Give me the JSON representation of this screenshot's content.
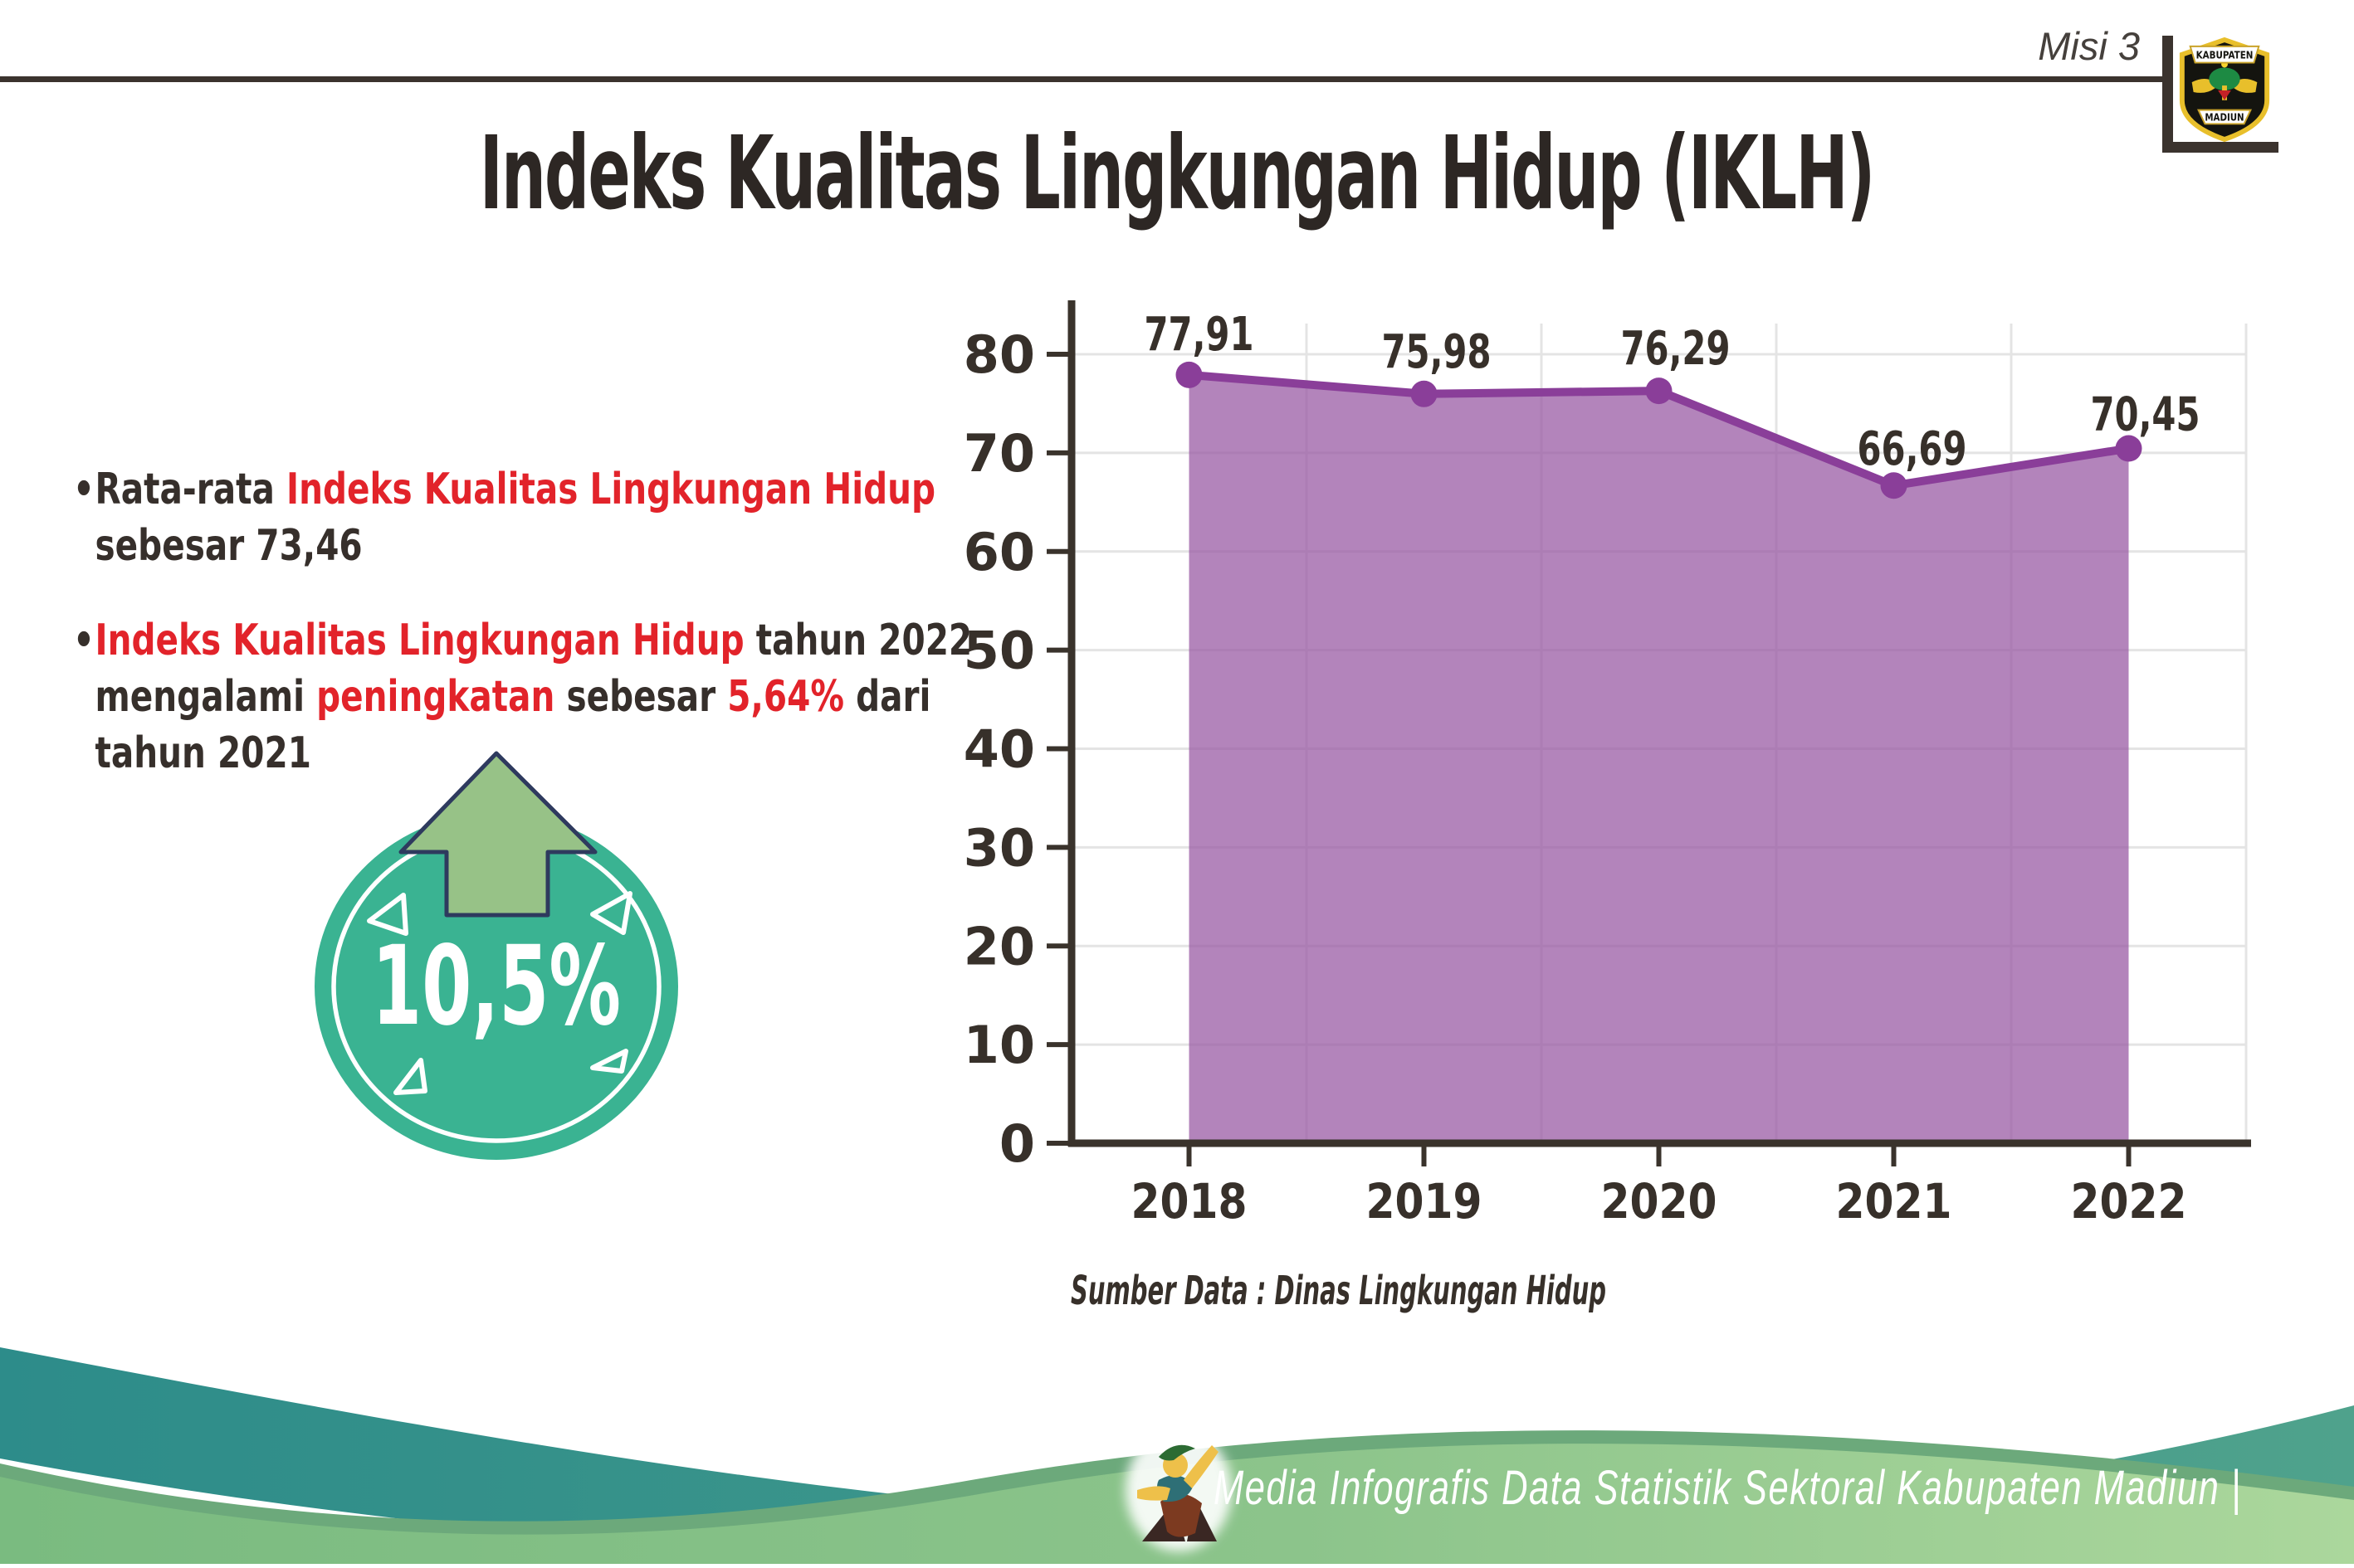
{
  "header": {
    "misi": "Misi 3",
    "logo_banner_top": "KABUPATEN",
    "logo_banner_bottom": "MADIUN"
  },
  "title": "Indeks Kualitas Lingkungan Hidup (IKLH)",
  "bullets": [
    {
      "segments": [
        {
          "text": "Rata-rata ",
          "color": "dark"
        },
        {
          "text": "Indeks Kualitas Lingkungan Hidup",
          "color": "red"
        },
        {
          "text": " sebesar 73,46",
          "color": "dark"
        }
      ]
    },
    {
      "segments": [
        {
          "text": "Indeks Kualitas Lingkungan Hidup",
          "color": "red"
        },
        {
          "text": " tahun 2022 mengalami ",
          "color": "dark"
        },
        {
          "text": "peningkatan",
          "color": "red"
        },
        {
          "text": " sebesar ",
          "color": "dark"
        },
        {
          "text": "5,64%",
          "color": "red"
        },
        {
          "text": " dari tahun 2021",
          "color": "dark"
        }
      ]
    }
  ],
  "badge": {
    "value": "10,5%",
    "direction": "up"
  },
  "chart_data": {
    "type": "area",
    "title": "",
    "categories": [
      "2018",
      "2019",
      "2020",
      "2021",
      "2022"
    ],
    "values": [
      77.91,
      75.98,
      76.29,
      66.69,
      70.45
    ],
    "value_labels": [
      "77,91",
      "75,98",
      "76,29",
      "66,69",
      "70,45"
    ],
    "xlabel": "",
    "ylabel": "",
    "ylim": [
      0,
      80
    ],
    "ytick_interval": 10,
    "ytick_labels": [
      "80",
      "70",
      "60",
      "50",
      "40",
      "30",
      "20",
      "10",
      "0"
    ],
    "grid": "light gray horizontal and vertical",
    "legend": "none",
    "source_note": "Sumber Data : Dinas Lingkungan Hidup"
  },
  "footer": {
    "credit": "Media Infografis Data Statistik Sektoral Kabupaten Madiun |"
  },
  "colors": {
    "accent_red": "#e2232a",
    "text_dark": "#362f2b",
    "title_dark": "#2d2724",
    "rule_dark": "#3b332e",
    "chart_line_purple": "#8a3e99",
    "chart_fill_purple": "rgba(150,85,161,0.72)",
    "grid_gray": "#e4e4e4",
    "axis_dark": "#3a332c",
    "badge_teal": "#3ab392",
    "arrow_green": "#97c287",
    "arrow_outline_navy": "#2e3a5e",
    "footer_teal": "#2d8c8a",
    "footer_sage": "#6ca97b",
    "footer_green": "#7abb80",
    "footer_green_light": "#abd79c"
  }
}
